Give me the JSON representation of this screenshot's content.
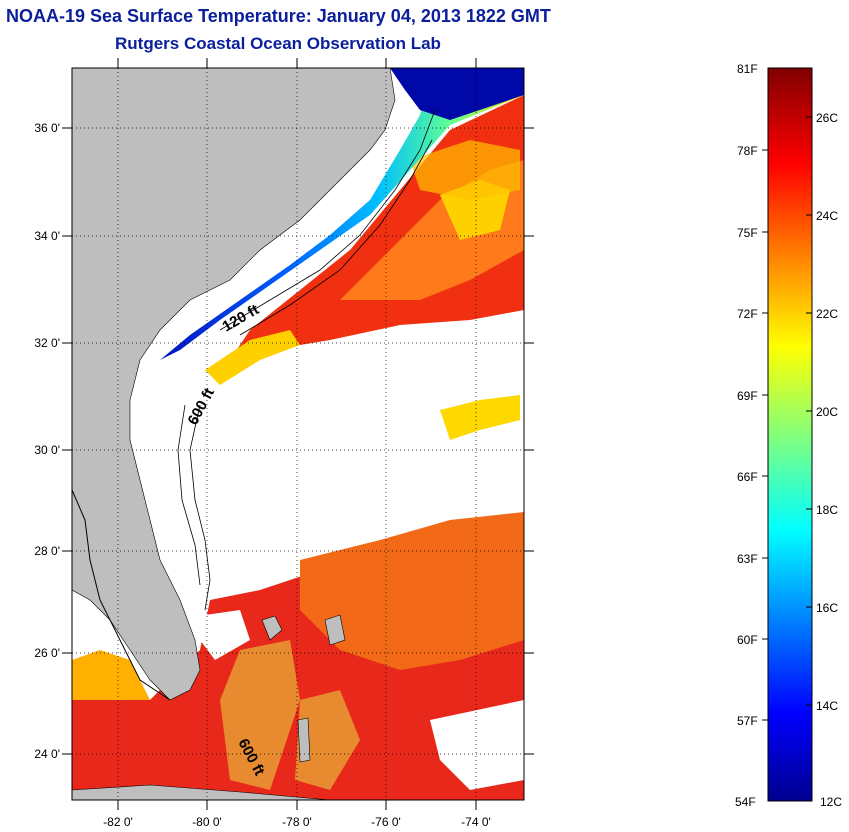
{
  "title": {
    "line1": "NOAA-19 Sea Surface Temperature:  January 04, 2013 1822 GMT",
    "line2": "Rutgers Coastal Ocean Observation Lab"
  },
  "map": {
    "lon_labels": [
      "-82 0'",
      "-80 0'",
      "-78 0'",
      "-76 0'",
      "-74 0'"
    ],
    "lat_labels": [
      "36 0'",
      "34 0'",
      "32 0'",
      "30 0'",
      "28 0'",
      "26 0'",
      "24 0'"
    ],
    "contour_labels": [
      "120 ft",
      "600 ft",
      "600 ft"
    ],
    "land_color": "#bebebe",
    "cloud_color": "#ffffff"
  },
  "colorbar": {
    "fahrenheit_labels": [
      "81F",
      "78F",
      "75F",
      "72F",
      "69F",
      "66F",
      "63F",
      "60F",
      "57F",
      "54F"
    ],
    "celsius_labels": [
      "26C",
      "24C",
      "22C",
      "20C",
      "18C",
      "16C",
      "14C",
      "12C"
    ],
    "colormap": "jet",
    "range_celsius": [
      12,
      27.2
    ]
  }
}
